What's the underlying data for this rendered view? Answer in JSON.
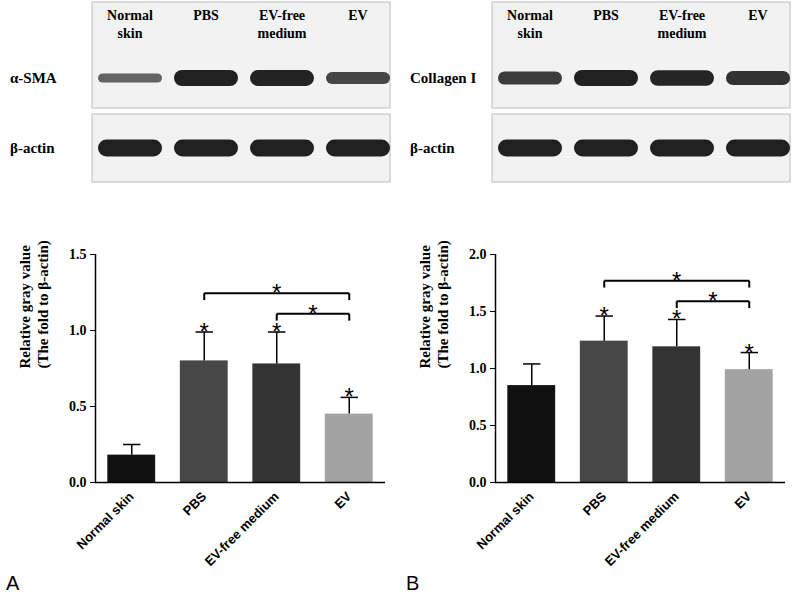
{
  "chart_data": [
    {
      "type": "bar",
      "panel": "A",
      "blot": {
        "rows": [
          "α-SMA",
          "β-actin"
        ],
        "lanes": [
          "Normal skin",
          "PBS",
          "EV-free medium",
          "EV"
        ]
      },
      "categories": [
        "Normal skin",
        "PBS",
        "EV-free medium",
        "EV"
      ],
      "values": [
        0.18,
        0.8,
        0.78,
        0.45
      ],
      "errors": [
        0.07,
        0.19,
        0.21,
        0.11
      ],
      "colors": [
        "#111111",
        "#474747",
        "#333333",
        "#a3a3a3"
      ],
      "y_label": [
        "Relative gray value",
        "(The fold to β-actin)"
      ],
      "ylim": [
        0,
        1.5
      ],
      "yticks": [
        {
          "value": 0,
          "label": "0.0"
        },
        {
          "value": 0.5,
          "label": "0.5"
        },
        {
          "value": 1,
          "label": "1.0"
        },
        {
          "value": 1.5,
          "label": "1.5"
        }
      ],
      "significance": {
        "symbol": "*",
        "marked": [
          "PBS",
          "EV-free medium",
          "EV"
        ],
        "brackets": [
          [
            "PBS",
            "EV"
          ],
          [
            "EV-free medium",
            "EV"
          ]
        ]
      }
    },
    {
      "type": "bar",
      "panel": "B",
      "blot": {
        "rows": [
          "Collagen I",
          "β-actin"
        ],
        "lanes": [
          "Normal skin",
          "PBS",
          "EV-free medium",
          "EV"
        ]
      },
      "categories": [
        "Normal skin",
        "PBS",
        "EV-free medium",
        "EV"
      ],
      "values": [
        0.85,
        1.24,
        1.19,
        0.99
      ],
      "errors": [
        0.19,
        0.22,
        0.24,
        0.15
      ],
      "colors": [
        "#111111",
        "#474747",
        "#333333",
        "#a3a3a3"
      ],
      "y_label": [
        "Relative gray value",
        "(The fold to β-actin)"
      ],
      "ylim": [
        0,
        2
      ],
      "yticks": [
        {
          "value": 0,
          "label": "0.0"
        },
        {
          "value": 0.5,
          "label": "0.5"
        },
        {
          "value": 1,
          "label": "1.0"
        },
        {
          "value": 1.5,
          "label": "1.5"
        },
        {
          "value": 2,
          "label": "2.0"
        }
      ],
      "significance": {
        "symbol": "*",
        "marked": [
          "PBS",
          "EV-free medium",
          "EV"
        ],
        "brackets": [
          [
            "PBS",
            "EV"
          ],
          [
            "EV-free medium",
            "EV"
          ]
        ]
      }
    }
  ]
}
